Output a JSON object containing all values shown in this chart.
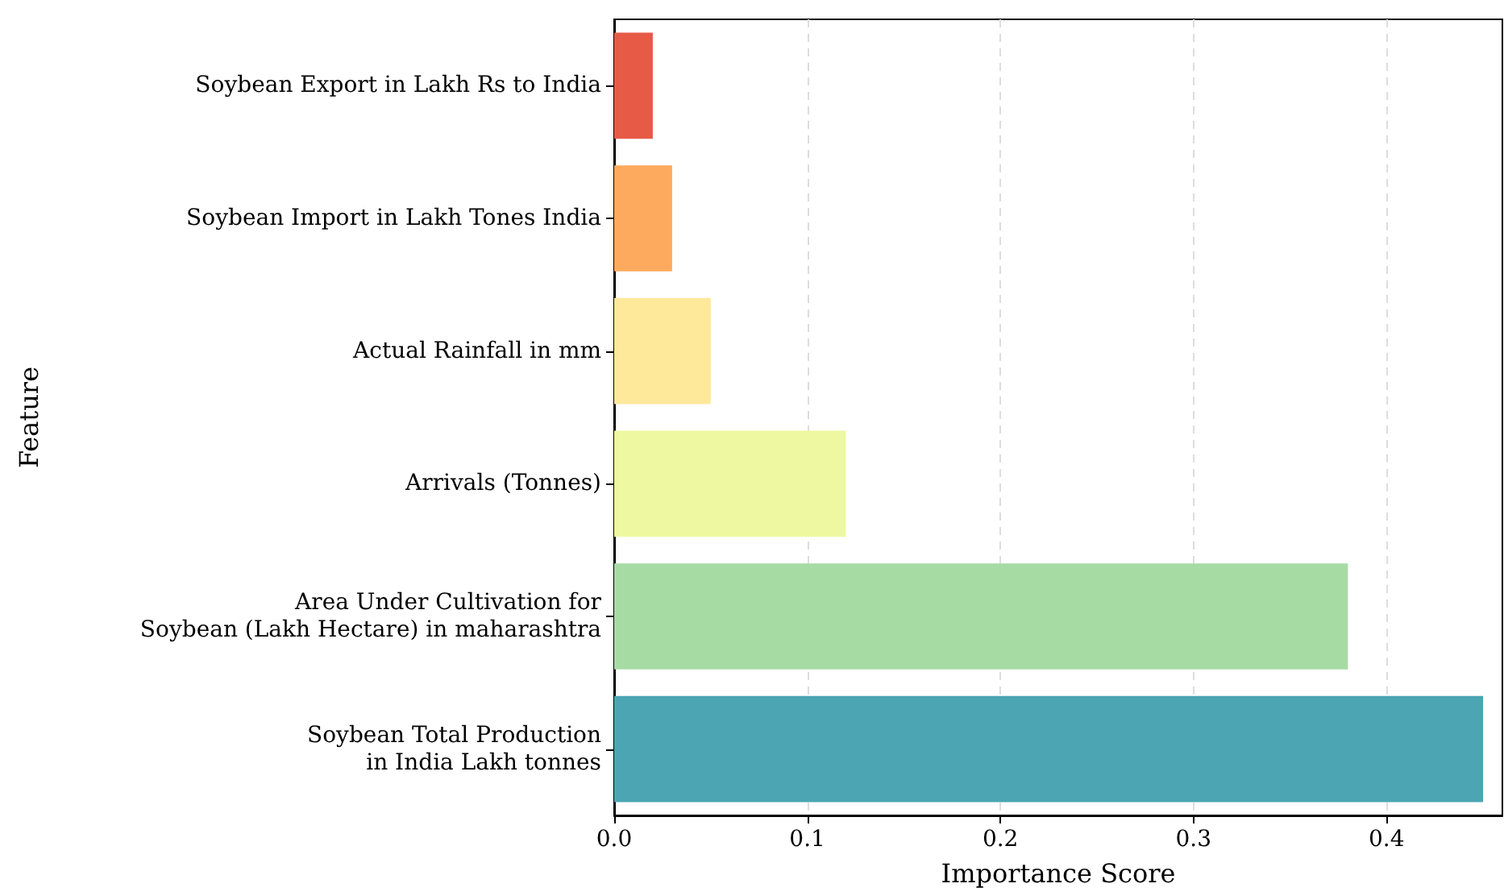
{
  "chart_data": {
    "type": "bar",
    "orientation": "horizontal",
    "xlabel": "Importance Score",
    "ylabel": "Feature",
    "categories": [
      "Soybean Export in Lakh Rs to India",
      "Soybean Import in Lakh Tones India",
      "Actual Rainfall in mm",
      "Arrivals (Tonnes)",
      "Area Under Cultivation for\nSoybean (Lakh Hectare) in maharashtra",
      "Soybean Total Production\nin India Lakh tonnes"
    ],
    "values": [
      0.02,
      0.03,
      0.05,
      0.12,
      0.38,
      0.45
    ],
    "colors": [
      "#e65a46",
      "#fdaa5e",
      "#fee89a",
      "#eef8a0",
      "#a6dba4",
      "#4ba5b3"
    ],
    "xlim": [
      0,
      0.46
    ],
    "xticks": [
      {
        "value": 0,
        "label": "0.0"
      },
      0.1,
      0.2,
      0.3,
      0.4
    ],
    "grid": "x"
  }
}
